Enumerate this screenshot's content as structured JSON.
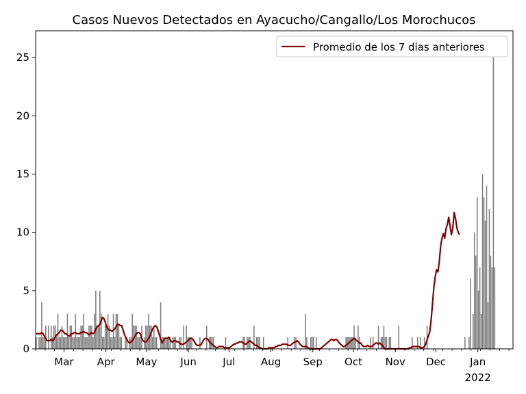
{
  "chart_data": {
    "type": "bar",
    "title": "Casos Nuevos Detectados en Ayacucho/Cangallo/Los Morochucos",
    "xlabel": "",
    "ylabel": "",
    "ylim": [
      0,
      27.3
    ],
    "yticks": [
      0,
      5,
      10,
      15,
      20,
      25
    ],
    "xlim": [
      "2021-02-08",
      "2022-01-27"
    ],
    "xticks": [
      {
        "date": "2021-03-01",
        "label": "Mar",
        "sublabel": ""
      },
      {
        "date": "2021-04-01",
        "label": "Apr",
        "sublabel": ""
      },
      {
        "date": "2021-05-01",
        "label": "May",
        "sublabel": ""
      },
      {
        "date": "2021-06-01",
        "label": "Jun",
        "sublabel": ""
      },
      {
        "date": "2021-07-01",
        "label": "Jul",
        "sublabel": ""
      },
      {
        "date": "2021-08-01",
        "label": "Aug",
        "sublabel": ""
      },
      {
        "date": "2021-09-01",
        "label": "Sep",
        "sublabel": ""
      },
      {
        "date": "2021-10-01",
        "label": "Oct",
        "sublabel": ""
      },
      {
        "date": "2021-11-01",
        "label": "Nov",
        "sublabel": ""
      },
      {
        "date": "2021-12-01",
        "label": "Dec",
        "sublabel": ""
      },
      {
        "date": "2022-01-01",
        "label": "Jan",
        "sublabel": "2022"
      }
    ],
    "grid": false,
    "legend": {
      "position": "top-right",
      "entries": [
        {
          "name": "Promedio de los 7 dias anteriores",
          "color": "#800000"
        }
      ]
    },
    "bar_color": "#808080",
    "start_date": "2021-02-08",
    "daily_cases": [
      1,
      0,
      1,
      1,
      4,
      1,
      1,
      2,
      0,
      2,
      0,
      2,
      1,
      2,
      2,
      1,
      3,
      1,
      1,
      2,
      1,
      1,
      1,
      3,
      1,
      2,
      2,
      1,
      1,
      3,
      1,
      1,
      1,
      2,
      2,
      3,
      1,
      1,
      1,
      2,
      2,
      2,
      1,
      3,
      5,
      2,
      2,
      5,
      3,
      1,
      1,
      2,
      2,
      3,
      2,
      1,
      1,
      3,
      1,
      3,
      3,
      2,
      1,
      1,
      0,
      0,
      1,
      1,
      0,
      1,
      1,
      3,
      2,
      2,
      2,
      1,
      1,
      1,
      2,
      0,
      1,
      2,
      2,
      3,
      2,
      2,
      1,
      2,
      1,
      1,
      0,
      0,
      4,
      1,
      1,
      1,
      1,
      1,
      1,
      1,
      0,
      1,
      1,
      1,
      0,
      0,
      1,
      1,
      0,
      2,
      0,
      2,
      1,
      1,
      1,
      1,
      0,
      0,
      0,
      0,
      0,
      1,
      0,
      0,
      0,
      0,
      2,
      0,
      1,
      1,
      1,
      1,
      0,
      0,
      0,
      0,
      0,
      0,
      0,
      0,
      1,
      0,
      0,
      0,
      0,
      0,
      0,
      0,
      0,
      0,
      0,
      0,
      0,
      1,
      1,
      0,
      1,
      1,
      1,
      0,
      0,
      2,
      0,
      1,
      1,
      1,
      0,
      0,
      1,
      0,
      0,
      0,
      0,
      0,
      0,
      0,
      0,
      0,
      0,
      0,
      0,
      0,
      0,
      0,
      0,
      0,
      1,
      0,
      0,
      0,
      0,
      1,
      1,
      0,
      0,
      0,
      0,
      0,
      0,
      3,
      1,
      0,
      0,
      1,
      1,
      1,
      0,
      1,
      0,
      0,
      0,
      0,
      0,
      0,
      0,
      0,
      0,
      0,
      0,
      0,
      0,
      0,
      0,
      0,
      0,
      0,
      0,
      0,
      0,
      1,
      1,
      1,
      1,
      1,
      1,
      2,
      1,
      0,
      2,
      1,
      0,
      0,
      0,
      0,
      0,
      0,
      0,
      1,
      0,
      1,
      0,
      0,
      0,
      2,
      0,
      1,
      1,
      2,
      1,
      1,
      0,
      1,
      1,
      0,
      0,
      0,
      0,
      0,
      2,
      0,
      0,
      0,
      0,
      0,
      0,
      0,
      0,
      0,
      1,
      0,
      0,
      0,
      1,
      0,
      1,
      0,
      0,
      1,
      0,
      2,
      0,
      0,
      0,
      0,
      0,
      0,
      0,
      0,
      0,
      0,
      0,
      0,
      0,
      0,
      0,
      0,
      0,
      0,
      0,
      0,
      0,
      0,
      0,
      0,
      0,
      0,
      0,
      1,
      0,
      0,
      1,
      6,
      0,
      3,
      10,
      8,
      13,
      5,
      7,
      3,
      15,
      13,
      11,
      14,
      4,
      12,
      8,
      7,
      26,
      7
    ],
    "rolling_avg_7d": [
      1.3,
      1.3,
      1.3,
      1.3,
      1.4,
      1.3,
      1.1,
      0.9,
      0.7,
      0.7,
      0.7,
      0.8,
      0.7,
      0.8,
      1.0,
      1.2,
      1.3,
      1.4,
      1.6,
      1.6,
      1.5,
      1.3,
      1.3,
      1.2,
      1.1,
      1.1,
      1.3,
      1.3,
      1.4,
      1.4,
      1.3,
      1.3,
      1.3,
      1.4,
      1.4,
      1.5,
      1.4,
      1.4,
      1.3,
      1.2,
      1.3,
      1.4,
      1.3,
      1.4,
      1.7,
      1.9,
      2.0,
      2.1,
      2.4,
      2.7,
      2.6,
      2.3,
      1.9,
      1.7,
      1.6,
      1.6,
      1.5,
      1.6,
      1.7,
      1.9,
      2.1,
      2.1,
      2.0,
      2.0,
      1.7,
      1.3,
      1.0,
      0.8,
      0.6,
      0.5,
      0.6,
      0.7,
      0.9,
      1.1,
      1.3,
      1.4,
      1.4,
      1.3,
      0.9,
      0.7,
      0.6,
      0.6,
      0.7,
      0.9,
      1.1,
      1.4,
      1.7,
      1.9,
      2.0,
      1.9,
      1.6,
      1.2,
      0.8,
      0.5,
      0.7,
      0.9,
      0.9,
      0.9,
      1.0,
      0.8,
      0.6,
      0.6,
      0.7,
      0.7,
      0.6,
      0.6,
      0.5,
      0.4,
      0.4,
      0.4,
      0.5,
      0.6,
      0.7,
      0.8,
      0.9,
      0.9,
      0.8,
      0.6,
      0.4,
      0.3,
      0.3,
      0.3,
      0.4,
      0.6,
      0.8,
      0.9,
      0.9,
      0.8,
      0.6,
      0.5,
      0.4,
      0.3,
      0.2,
      0.1,
      0.1,
      0.2,
      0.2,
      0.2,
      0.2,
      0.1,
      0.1,
      0.1,
      0.1,
      0.1,
      0.2,
      0.3,
      0.4,
      0.4,
      0.5,
      0.5,
      0.6,
      0.6,
      0.6,
      0.5,
      0.4,
      0.4,
      0.5,
      0.6,
      0.7,
      0.6,
      0.5,
      0.4,
      0.3,
      0.3,
      0.2,
      0.1,
      0.1,
      0.0,
      0.0,
      0.0,
      0.0,
      0.0,
      0.1,
      0.1,
      0.1,
      0.1,
      0.1,
      0.2,
      0.2,
      0.3,
      0.3,
      0.3,
      0.4,
      0.4,
      0.4,
      0.4,
      0.3,
      0.3,
      0.3,
      0.4,
      0.5,
      0.6,
      0.6,
      0.7,
      0.6,
      0.4,
      0.3,
      0.2,
      0.2,
      0.2,
      0.2,
      0.1,
      0.0,
      0.0,
      0.0,
      0.0,
      0.0,
      0.0,
      0.0,
      0.0,
      0.0,
      0.1,
      0.2,
      0.3,
      0.4,
      0.5,
      0.6,
      0.7,
      0.8,
      0.8,
      0.7,
      0.8,
      0.8,
      0.7,
      0.5,
      0.4,
      0.3,
      0.2,
      0.2,
      0.3,
      0.4,
      0.5,
      0.6,
      0.7,
      0.8,
      0.9,
      0.8,
      0.7,
      0.6,
      0.5,
      0.5,
      0.3,
      0.2,
      0.2,
      0.2,
      0.3,
      0.2,
      0.2,
      0.2,
      0.3,
      0.4,
      0.5,
      0.5,
      0.4,
      0.5,
      0.4,
      0.3,
      0.1,
      0.0,
      0.0,
      0.0,
      0.0,
      0.0,
      0.0,
      0.0,
      0.0,
      0.0,
      0.0,
      0.0,
      0.0,
      0.0,
      0.0,
      0.0,
      0.0,
      0.0,
      0.0,
      0.1,
      0.1,
      0.2,
      0.2,
      0.2,
      0.2,
      0.2,
      0.2,
      0.1,
      0.1,
      0.1,
      0.2,
      0.4,
      0.8,
      1.1,
      1.5,
      2.5,
      3.9,
      5.3,
      6.2,
      6.8,
      6.6,
      7.5,
      8.8,
      9.5,
      9.9,
      9.5,
      10.3,
      10.7,
      11.3,
      10.5,
      9.8,
      10.4,
      11.7,
      11.2,
      10.4,
      10.0,
      9.8
    ]
  }
}
